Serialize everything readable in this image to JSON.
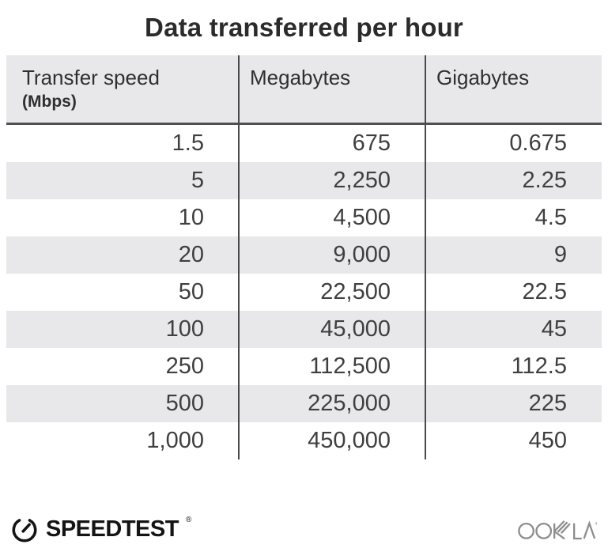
{
  "title": "Data transferred per hour",
  "chart_data": {
    "type": "table",
    "title": "Data transferred per hour",
    "columns": [
      "Transfer speed (Mbps)",
      "Megabytes",
      "Gigabytes"
    ],
    "rows": [
      [
        1.5,
        675,
        0.675
      ],
      [
        5,
        2250,
        2.25
      ],
      [
        10,
        4500,
        4.5
      ],
      [
        20,
        9000,
        9
      ],
      [
        50,
        22500,
        22.5
      ],
      [
        100,
        45000,
        45
      ],
      [
        250,
        112500,
        112.5
      ],
      [
        500,
        225000,
        225
      ],
      [
        1000,
        450000,
        450
      ]
    ]
  },
  "table": {
    "header": [
      {
        "label": "Transfer speed",
        "sublabel": "(Mbps)"
      },
      {
        "label": "Megabytes",
        "sublabel": ""
      },
      {
        "label": "Gigabytes",
        "sublabel": ""
      }
    ],
    "rows_display": [
      [
        "1.5",
        "675",
        "0.675"
      ],
      [
        "5",
        "2,250",
        "2.25"
      ],
      [
        "10",
        "4,500",
        "4.5"
      ],
      [
        "20",
        "9,000",
        "9"
      ],
      [
        "50",
        "22,500",
        "22.5"
      ],
      [
        "100",
        "45,000",
        "45"
      ],
      [
        "250",
        "112,500",
        "112.5"
      ],
      [
        "500",
        "225,000",
        "225"
      ],
      [
        "1,000",
        "450,000",
        "450"
      ]
    ]
  },
  "footer": {
    "speedtest_label": "SPEEDTEST",
    "speedtest_reg_mark": "®",
    "ookla_label": "OOKLA"
  },
  "colors": {
    "background": "#ffffff",
    "header_bg": "#e8e8eb",
    "row_stripe": "#e8e8eb",
    "divider": "#4a4a4a",
    "title_text": "#2b2b2b",
    "cell_text": "#3f3f3f",
    "speedtest_black": "#141414",
    "ookla_gray": "#8d8d8d"
  }
}
